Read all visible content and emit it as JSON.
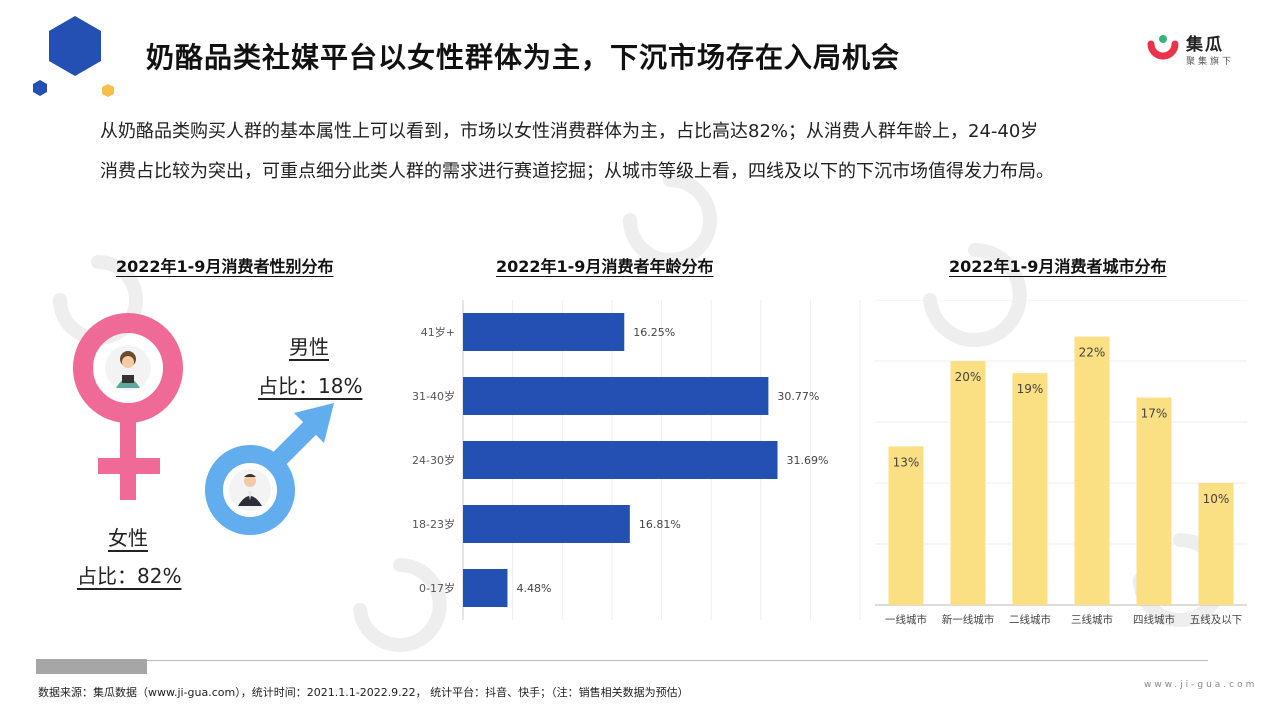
{
  "header": {
    "title": "奶酪品类社媒平台以女性群体为主，下沉市场存在入局机会",
    "brand_name": "集瓜",
    "brand_sub": "聚集旗下"
  },
  "intro": {
    "line1": "从奶酪品类购买人群的基本属性上可以看到，市场以女性消费群体为主，占比高达82%；从消费人群年龄上，24-40岁",
    "line2": "消费占比较为突出，可重点细分此类人群的需求进行赛道挖掘；从城市等级上看，四线及以下的下沉市场值得发力布局。"
  },
  "gender": {
    "title": "2022年1-9月消费者性别分布",
    "male_label": "男性",
    "male_share": "占比：18%",
    "female_label": "女性",
    "female_share": "占比：82%"
  },
  "chart_data": [
    {
      "type": "bar",
      "orientation": "horizontal",
      "title": "2022年1-9月消费者年龄分布",
      "categories": [
        "41岁+",
        "31-40岁",
        "24-30岁",
        "18-23岁",
        "0-17岁"
      ],
      "values": [
        16.25,
        30.77,
        31.69,
        16.81,
        4.48
      ],
      "value_labels": [
        "16.25%",
        "30.77%",
        "31.69%",
        "16.81%",
        "4.48%"
      ],
      "xlim": [
        0,
        40
      ],
      "grid": true,
      "color": "#2450b4"
    },
    {
      "type": "bar",
      "orientation": "vertical",
      "title": "2022年1-9月消费者城市分布",
      "categories": [
        "一线城市",
        "新一线城市",
        "二线城市",
        "三线城市",
        "四线城市",
        "五线及以下"
      ],
      "values": [
        13,
        20,
        19,
        22,
        17,
        10
      ],
      "value_labels": [
        "13%",
        "20%",
        "19%",
        "22%",
        "17%",
        "10%"
      ],
      "ylim": [
        0,
        25
      ],
      "grid": true,
      "color": "#fbdf83"
    }
  ],
  "footer": {
    "source": "数据来源：集瓜数据（www.ji-gua.com），统计时间：2021.1.1-2022.9.22，  统计平台：抖音、快手；（注：销售相关数据为预估）",
    "site": "www.ji-gua.com"
  },
  "colors": {
    "female": "#ef6a96",
    "male": "#62adee",
    "age_bar": "#2450b4",
    "city_bar": "#fbdf83",
    "logo_blue": "#2450b4",
    "logo_gold": "#f5c04a"
  }
}
